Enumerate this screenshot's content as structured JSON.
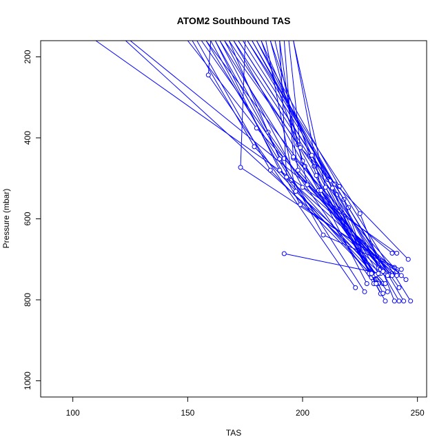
{
  "chart_data": {
    "type": "line",
    "title": "ATOM2 Southbound TAS",
    "xlabel": "TAS",
    "ylabel": "Pressure (mbar)",
    "xlim": [
      86,
      254
    ],
    "ylim": [
      1040,
      160
    ],
    "y_reversed": true,
    "x_ticks": [
      100,
      150,
      200,
      250
    ],
    "y_ticks": [
      200,
      400,
      600,
      800,
      1000
    ],
    "grid": false,
    "legend": "none",
    "color": "#0000ff",
    "marker": "open-circle",
    "profiles": [
      {
        "x": [
          241,
          110
        ],
        "y": [
          685,
          160
        ]
      },
      {
        "x": [
          239,
          125
        ],
        "y": [
          685,
          160
        ]
      },
      {
        "x": [
          192,
          234,
          123
        ],
        "y": [
          686,
          735,
          160
        ]
      },
      {
        "x": [
          236,
          158
        ],
        "y": [
          735,
          160
        ]
      },
      {
        "x": [
          223,
          159,
          160
        ],
        "y": [
          770,
          245,
          160
        ]
      },
      {
        "x": [
          240,
          173,
          175
        ],
        "y": [
          720,
          473,
          160
        ]
      },
      {
        "x": [
          238,
          180,
          150
        ],
        "y": [
          740,
          376,
          160
        ]
      },
      {
        "x": [
          235,
          179,
          152
        ],
        "y": [
          760,
          422,
          160
        ]
      },
      {
        "x": [
          232,
          186,
          154
        ],
        "y": [
          750,
          480,
          160
        ]
      },
      {
        "x": [
          239,
          192,
          156
        ],
        "y": [
          735,
          451,
          160
        ]
      },
      {
        "x": [
          236,
          195,
          158
        ],
        "y": [
          760,
          505,
          160
        ]
      },
      {
        "x": [
          241,
          199,
          160
        ],
        "y": [
          730,
          565,
          160
        ]
      },
      {
        "x": [
          243,
          209,
          162
        ],
        "y": [
          725,
          640,
          160
        ]
      },
      {
        "x": [
          233,
          190,
          162
        ],
        "y": [
          760,
          480,
          160
        ]
      },
      {
        "x": [
          231,
          185,
          164
        ],
        "y": [
          760,
          386,
          160
        ]
      },
      {
        "x": [
          237,
          196,
          164
        ],
        "y": [
          780,
          450,
          160
        ]
      },
      {
        "x": [
          245,
          200,
          166
        ],
        "y": [
          750,
          522,
          160
        ]
      },
      {
        "x": [
          242,
          205,
          166
        ],
        "y": [
          770,
          470,
          160
        ]
      },
      {
        "x": [
          227,
          190,
          168
        ],
        "y": [
          780,
          452,
          160
        ]
      },
      {
        "x": [
          236,
          198,
          168
        ],
        "y": [
          803,
          417,
          160
        ]
      },
      {
        "x": [
          234,
          203,
          170
        ],
        "y": [
          785,
          445,
          160
        ]
      },
      {
        "x": [
          228,
          207,
          170
        ],
        "y": [
          760,
          530,
          160
        ]
      },
      {
        "x": [
          230,
          211,
          172
        ],
        "y": [
          745,
          503,
          160
        ]
      },
      {
        "x": [
          233,
          215,
          172
        ],
        "y": [
          720,
          540,
          160
        ]
      },
      {
        "x": [
          229,
          218,
          174
        ],
        "y": [
          735,
          552,
          160
        ]
      },
      {
        "x": [
          238,
          220,
          176
        ],
        "y": [
          738,
          572,
          160
        ]
      },
      {
        "x": [
          240,
          225,
          176
        ],
        "y": [
          803,
          587,
          160
        ]
      },
      {
        "x": [
          242,
          212,
          178
        ],
        "y": [
          803,
          506,
          160
        ]
      },
      {
        "x": [
          244,
          214,
          178
        ],
        "y": [
          803,
          514,
          160
        ]
      },
      {
        "x": [
          247,
          216,
          180
        ],
        "y": [
          803,
          520,
          160
        ]
      },
      {
        "x": [
          235,
          213,
          180
        ],
        "y": [
          784,
          524,
          160
        ]
      },
      {
        "x": [
          231,
          204,
          182
        ],
        "y": [
          740,
          443,
          160
        ]
      },
      {
        "x": [
          232,
          201,
          182
        ],
        "y": [
          738,
          470,
          160
        ]
      },
      {
        "x": [
          234,
          197,
          184
        ],
        "y": [
          725,
          532,
          160
        ]
      },
      {
        "x": [
          232,
          206,
          186
        ],
        "y": [
          760,
          493,
          160
        ]
      },
      {
        "x": [
          230,
          200,
          186
        ],
        "y": [
          735,
          457,
          160
        ]
      },
      {
        "x": [
          237,
          202,
          188
        ],
        "y": [
          740,
          516,
          160
        ]
      },
      {
        "x": [
          239,
          198,
          190
        ],
        "y": [
          740,
          480,
          160
        ]
      },
      {
        "x": [
          241,
          193,
          190
        ],
        "y": [
          740,
          497,
          160
        ]
      },
      {
        "x": [
          243,
          196,
          192
        ],
        "y": [
          740,
          447,
          160
        ]
      },
      {
        "x": [
          246,
          199,
          194
        ],
        "y": [
          700,
          424,
          160
        ]
      },
      {
        "x": [
          235,
          208,
          196
        ],
        "y": [
          730,
          530,
          160
        ]
      },
      {
        "x": [
          233,
          210,
          196
        ],
        "y": [
          735,
          522,
          160
        ]
      }
    ]
  }
}
